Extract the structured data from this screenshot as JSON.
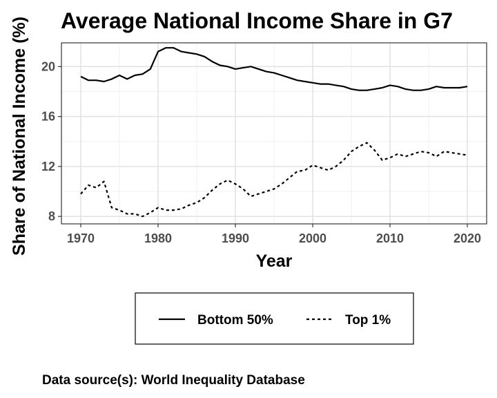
{
  "chart_data": {
    "type": "line",
    "title": "Average National Income Share in G7",
    "xlabel": "Year",
    "ylabel": "Share of National Income (%)",
    "xlim": [
      1967.5,
      2022.5
    ],
    "ylim": [
      7.4,
      21.9
    ],
    "x_ticks": [
      1970,
      1980,
      1990,
      2000,
      2010,
      2020
    ],
    "y_ticks": [
      8,
      12,
      16,
      20
    ],
    "grid": true,
    "legend_position": "bottom",
    "x": [
      1970,
      1971,
      1972,
      1973,
      1974,
      1975,
      1976,
      1977,
      1978,
      1979,
      1980,
      1981,
      1982,
      1983,
      1984,
      1985,
      1986,
      1987,
      1988,
      1989,
      1990,
      1991,
      1992,
      1993,
      1994,
      1995,
      1996,
      1997,
      1998,
      1999,
      2000,
      2001,
      2002,
      2003,
      2004,
      2005,
      2006,
      2007,
      2008,
      2009,
      2010,
      2011,
      2012,
      2013,
      2014,
      2015,
      2016,
      2017,
      2018,
      2019,
      2020
    ],
    "series": [
      {
        "name": "Bottom 50%",
        "line_style": "solid",
        "values": [
          19.2,
          18.9,
          18.9,
          18.8,
          19.0,
          19.3,
          19.0,
          19.3,
          19.4,
          19.8,
          21.2,
          21.5,
          21.5,
          21.2,
          21.1,
          21.0,
          20.8,
          20.4,
          20.1,
          20.0,
          19.8,
          19.9,
          20.0,
          19.8,
          19.6,
          19.5,
          19.3,
          19.1,
          18.9,
          18.8,
          18.7,
          18.6,
          18.6,
          18.5,
          18.4,
          18.2,
          18.1,
          18.1,
          18.2,
          18.3,
          18.5,
          18.4,
          18.2,
          18.1,
          18.1,
          18.2,
          18.4,
          18.3,
          18.3,
          18.3,
          18.4
        ]
      },
      {
        "name": "Top 1%",
        "line_style": "dashed",
        "values": [
          9.8,
          10.5,
          10.3,
          10.8,
          8.7,
          8.5,
          8.2,
          8.2,
          8.0,
          8.3,
          8.7,
          8.5,
          8.5,
          8.6,
          8.9,
          9.1,
          9.5,
          10.1,
          10.6,
          10.9,
          10.6,
          10.2,
          9.6,
          9.8,
          10.0,
          10.2,
          10.6,
          11.1,
          11.6,
          11.7,
          12.1,
          11.9,
          11.7,
          12.0,
          12.5,
          13.2,
          13.6,
          13.9,
          13.3,
          12.5,
          12.7,
          13.0,
          12.8,
          13.0,
          13.2,
          13.1,
          12.8,
          13.2,
          13.1,
          13.0,
          12.9
        ]
      }
    ]
  },
  "source_note": "Data source(s): World Inequality Database"
}
